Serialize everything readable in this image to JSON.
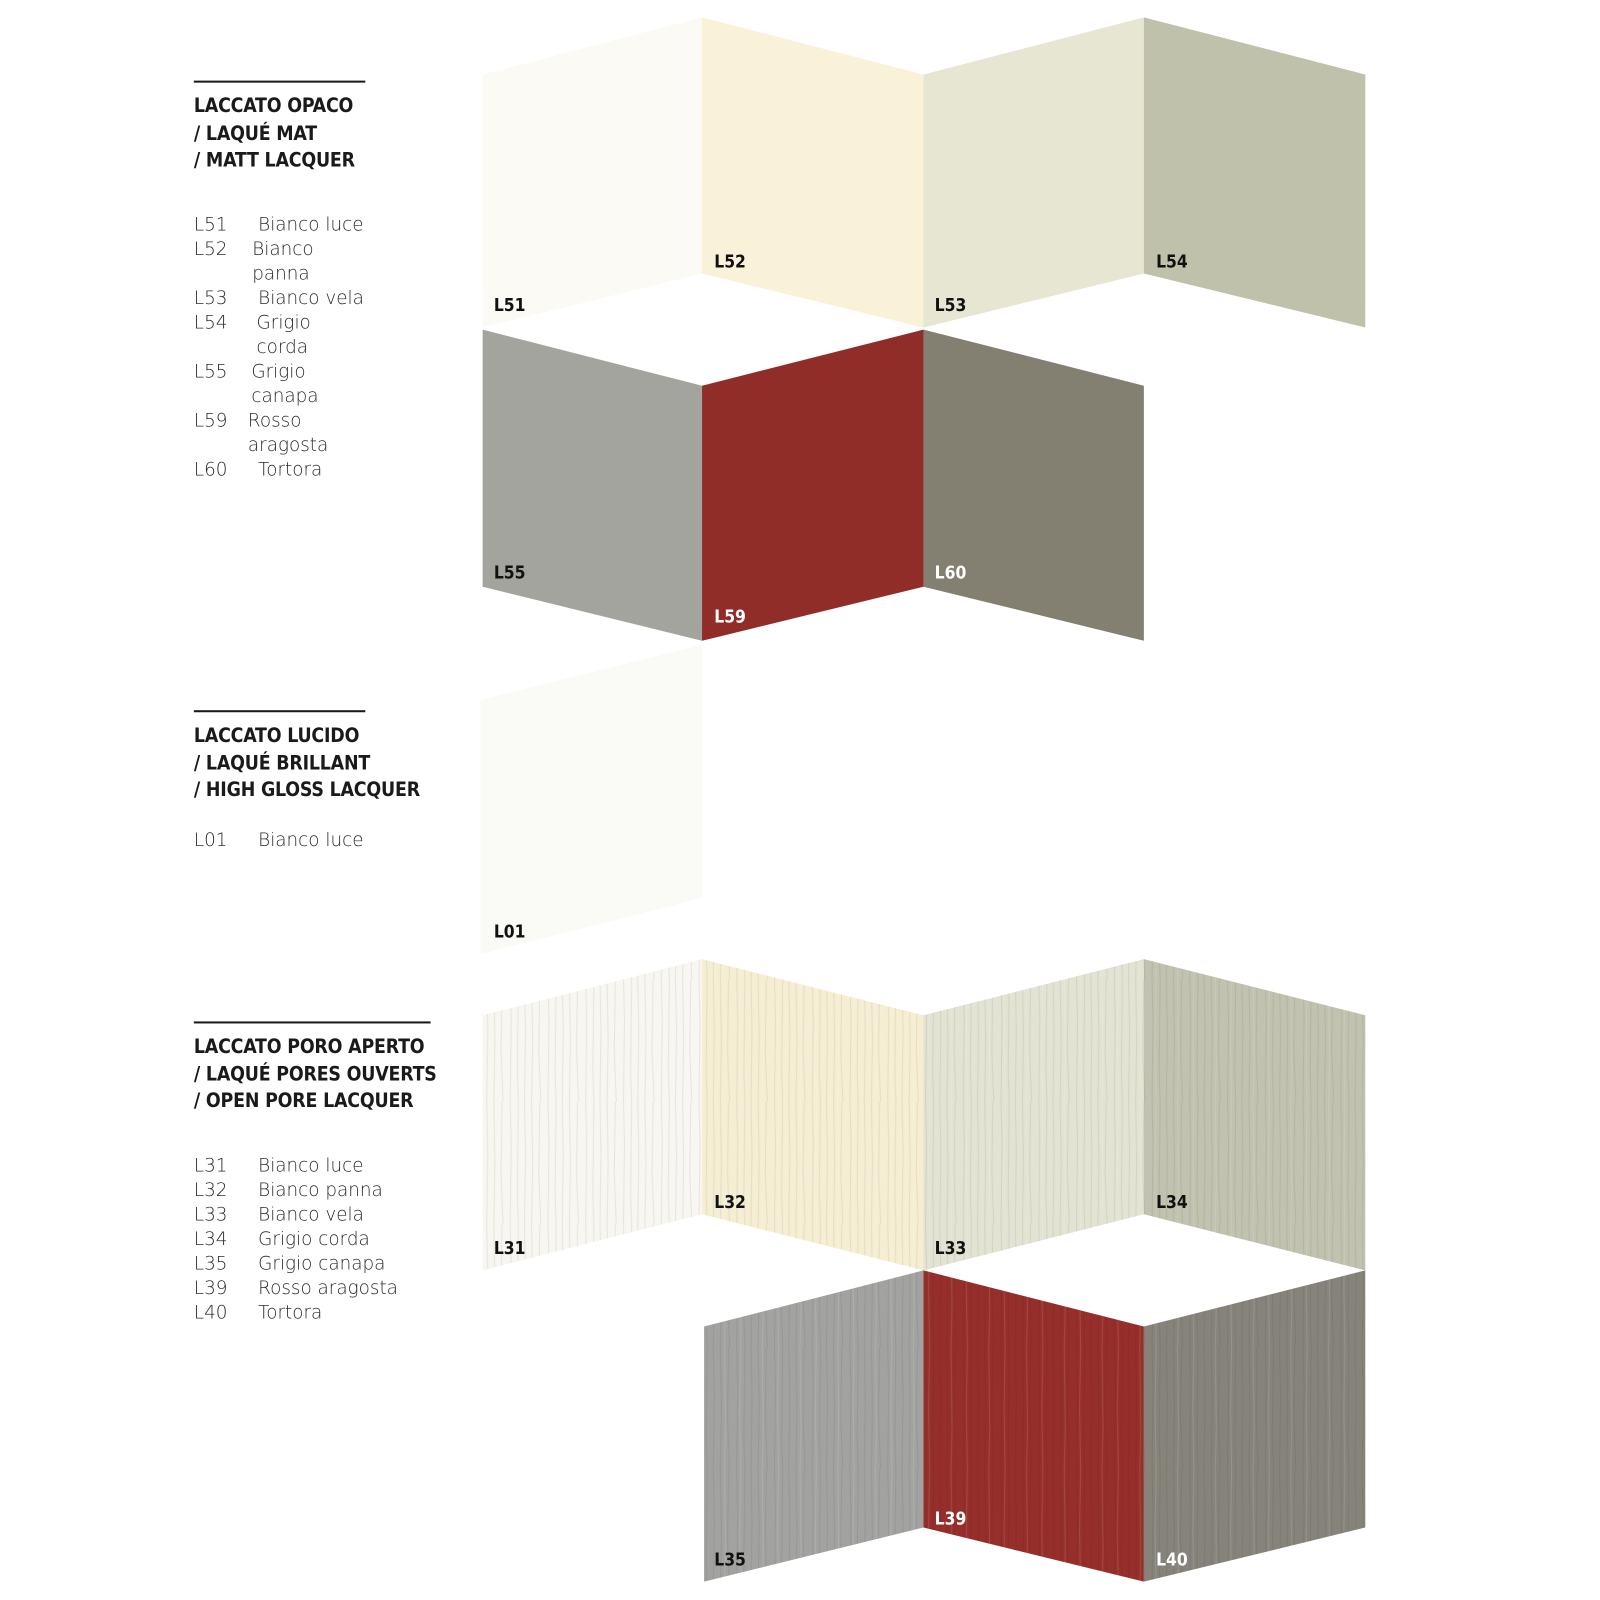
{
  "sections": [
    {
      "heading": [
        "LACCATO OPACO",
        "/ LAQUÉ MAT",
        "/ MATT LACQUER"
      ],
      "items": [
        {
          "code": "L51",
          "name": "Bianco luce"
        },
        {
          "code": "L52",
          "name": "Bianco panna"
        },
        {
          "code": "L53",
          "name": "Bianco vela"
        },
        {
          "code": "L54",
          "name": "Grigio corda"
        },
        {
          "code": "L55",
          "name": "Grigio canapa"
        },
        {
          "code": "L59",
          "name": "Rosso aragosta"
        },
        {
          "code": "L60",
          "name": "Tortora"
        }
      ]
    },
    {
      "heading": [
        "LACCATO LUCIDO",
        "/ LAQUÉ BRILLANT",
        "/ HIGH GLOSS LACQUER"
      ],
      "items": [
        {
          "code": "L01",
          "name": "Bianco luce"
        }
      ]
    },
    {
      "heading": [
        "LACCATO PORO APERTO",
        "/ LAQUÉ PORES OUVERTS",
        "/  OPEN PORE LACQUER"
      ],
      "items": [
        {
          "code": "L31",
          "name": "Bianco luce"
        },
        {
          "code": "L32",
          "name": "Bianco panna"
        },
        {
          "code": "L33",
          "name": "Bianco vela"
        },
        {
          "code": "L34",
          "name": "Grigio corda"
        },
        {
          "code": "L35",
          "name": "Grigio canapa"
        },
        {
          "code": "L39",
          "name": "Rosso aragosta"
        },
        {
          "code": "L40",
          "name": "Tortora"
        }
      ]
    }
  ],
  "swatches": [
    {
      "code": "L51",
      "color": "#fbfaf5",
      "label_color": "#111111",
      "texture": "matt"
    },
    {
      "code": "L52",
      "color": "#f9f2d8",
      "label_color": "#111111",
      "texture": "matt"
    },
    {
      "code": "L53",
      "color": "#e7e6d2",
      "label_color": "#111111",
      "texture": "matt"
    },
    {
      "code": "L54",
      "color": "#c0c1aa",
      "label_color": "#111111",
      "texture": "matt"
    },
    {
      "code": "L55",
      "color": "#a3a49d",
      "label_color": "#111111",
      "texture": "matt"
    },
    {
      "code": "L59",
      "color": "#902d29",
      "label_color": "#ffffff",
      "texture": "matt"
    },
    {
      "code": "L60",
      "color": "#838072",
      "label_color": "#ffffff",
      "texture": "matt"
    },
    {
      "code": "L01",
      "color": "#fafaf6",
      "label_color": "#111111",
      "texture": "gloss"
    },
    {
      "code": "L31",
      "color": "#f7f6f0",
      "label_color": "#111111",
      "texture": "open-pore"
    },
    {
      "code": "L32",
      "color": "#f6eed3",
      "label_color": "#111111",
      "texture": "open-pore"
    },
    {
      "code": "L33",
      "color": "#e3e3d3",
      "label_color": "#111111",
      "texture": "open-pore"
    },
    {
      "code": "L34",
      "color": "#c2c2b0",
      "label_color": "#111111",
      "texture": "open-pore"
    },
    {
      "code": "L35",
      "color": "#a2a3a0",
      "label_color": "#111111",
      "texture": "open-pore"
    },
    {
      "code": "L39",
      "color": "#962f2b",
      "label_color": "#ffffff",
      "texture": "open-pore"
    },
    {
      "code": "L40",
      "color": "#86847a",
      "label_color": "#ffffff",
      "texture": "open-pore"
    }
  ]
}
